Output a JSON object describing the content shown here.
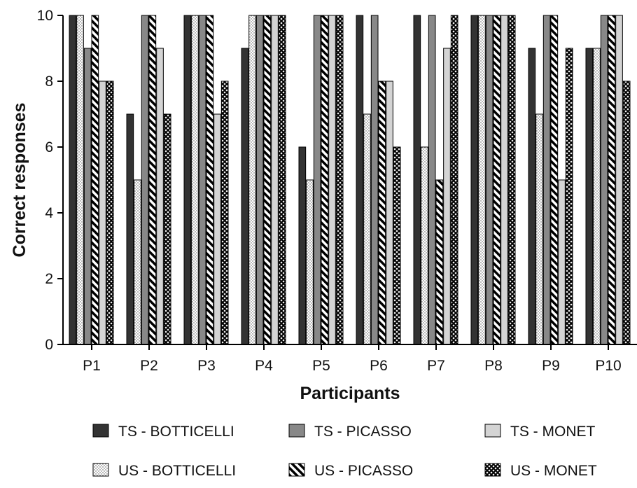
{
  "chart_data": {
    "type": "bar",
    "categories": [
      "P1",
      "P2",
      "P3",
      "P4",
      "P5",
      "P6",
      "P7",
      "P8",
      "P9",
      "P10"
    ],
    "series": [
      {
        "name": "TS - BOTTICELLI",
        "pattern": "solid-dark",
        "values": [
          10,
          7,
          10,
          9,
          6,
          10,
          10,
          10,
          9,
          9
        ]
      },
      {
        "name": "US - BOTTICELLI",
        "pattern": "dots",
        "values": [
          10,
          5,
          10,
          10,
          5,
          7,
          6,
          10,
          7,
          9
        ]
      },
      {
        "name": "TS - PICASSO",
        "pattern": "solid-mid",
        "values": [
          9,
          10,
          10,
          10,
          10,
          10,
          10,
          10,
          10,
          10
        ]
      },
      {
        "name": "US - PICASSO",
        "pattern": "diagonal",
        "values": [
          10,
          10,
          10,
          10,
          10,
          8,
          5,
          10,
          10,
          10
        ]
      },
      {
        "name": "TS - MONET",
        "pattern": "solid-light",
        "values": [
          8,
          9,
          7,
          10,
          10,
          8,
          9,
          10,
          5,
          10
        ]
      },
      {
        "name": "US - MONET",
        "pattern": "crosshatch",
        "values": [
          8,
          7,
          8,
          10,
          10,
          6,
          10,
          10,
          9,
          8
        ]
      }
    ],
    "legend_order": [
      "TS - BOTTICELLI",
      "TS - PICASSO",
      "TS - MONET",
      "US - BOTTICELLI",
      "US - PICASSO",
      "US - MONET"
    ],
    "xlabel": "Participants",
    "ylabel": "Correct responses",
    "ylim": [
      0,
      10
    ],
    "yticks": [
      0,
      2,
      4,
      6,
      8,
      10
    ],
    "grid": false,
    "legend_position": "bottom",
    "colors": {
      "dark": "#333333",
      "mid": "#888888",
      "light": "#d4d4d4",
      "outline": "#000000"
    }
  }
}
